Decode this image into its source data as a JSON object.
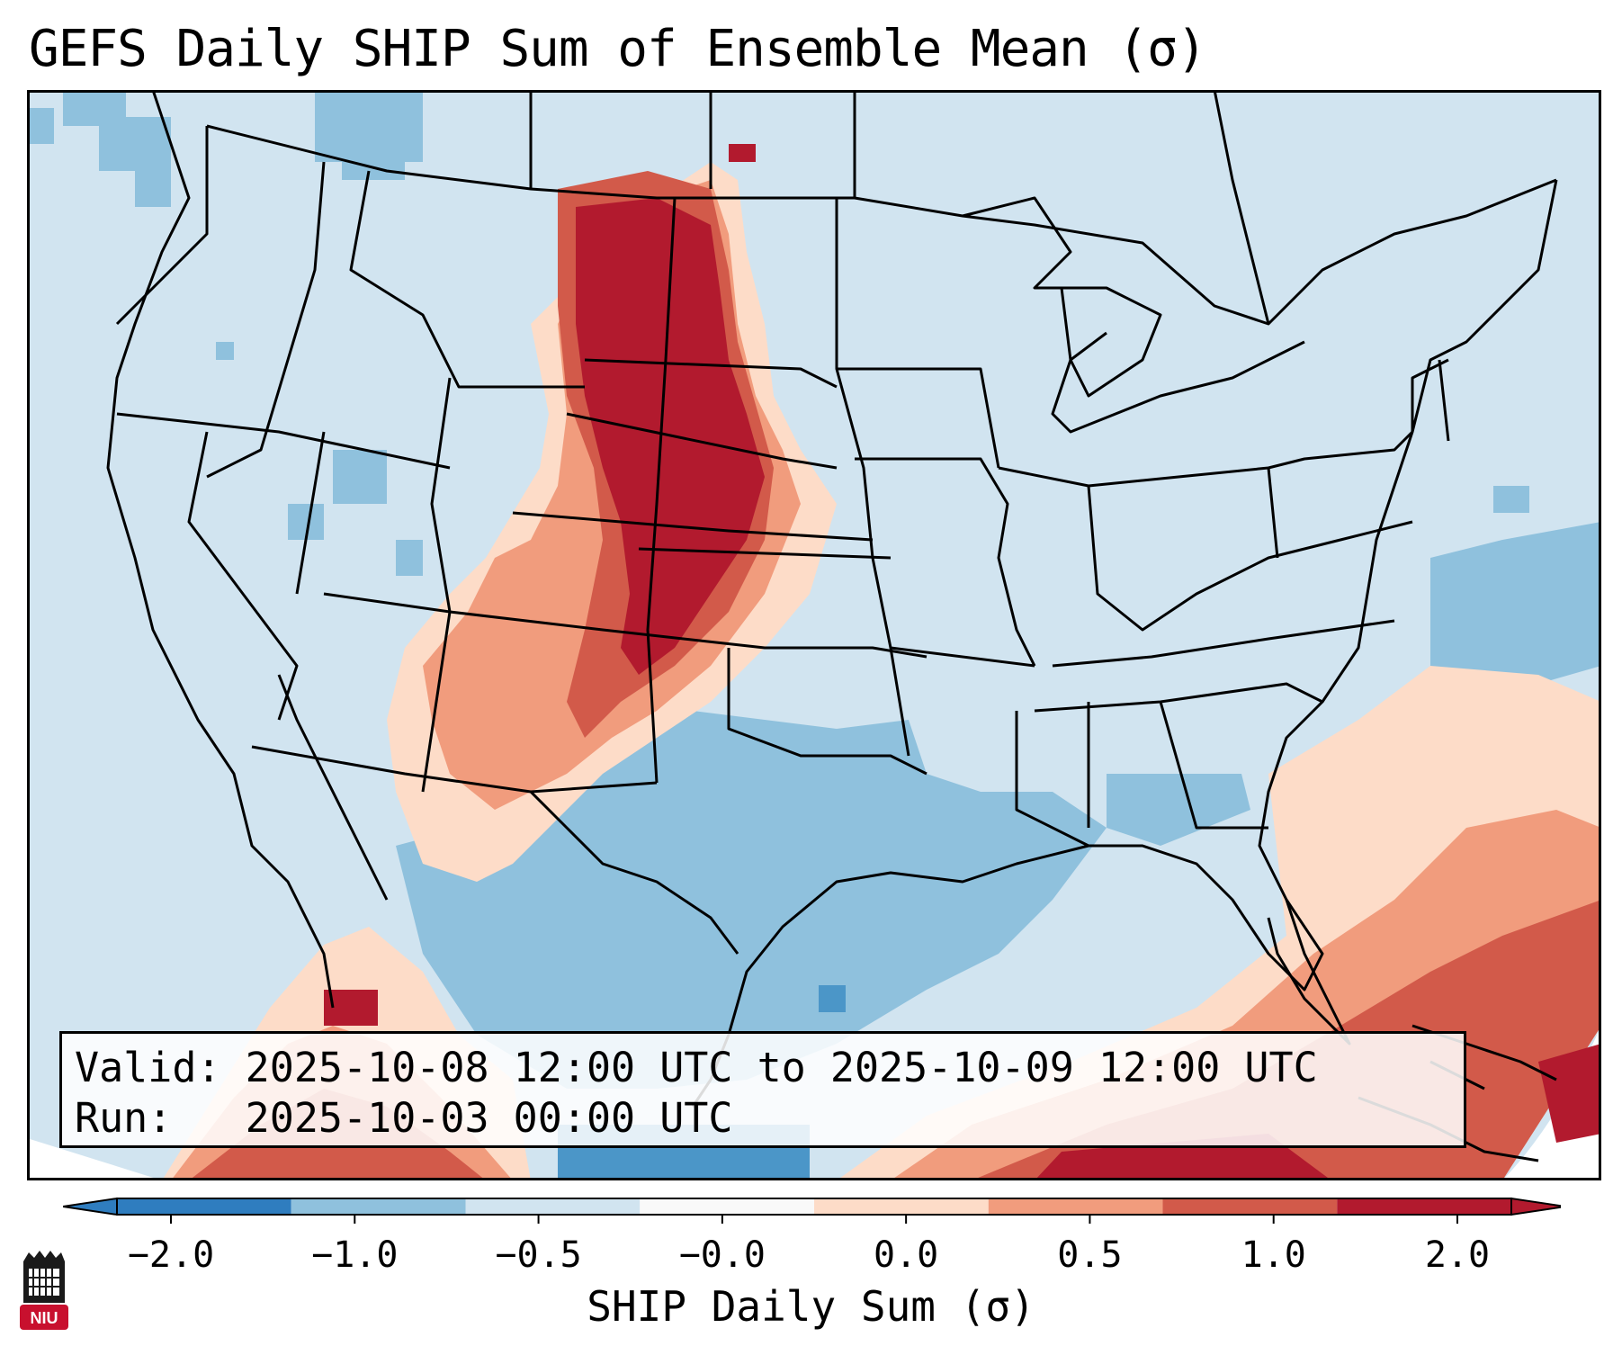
{
  "title": "GEFS Daily SHIP Sum of Ensemble Mean (σ)",
  "info": {
    "valid": "Valid: 2025-10-08 12:00 UTC to 2025-10-09 12:00 UTC",
    "run": "Run:   2025-10-03 00:00 UTC"
  },
  "colorbar": {
    "label": "SHIP Daily Sum (σ)",
    "ticks": [
      "−2.0",
      "−1.0",
      "−0.5",
      "−0.0",
      "0.0",
      "0.5",
      "1.0",
      "2.0"
    ],
    "colors": [
      "#2f7dbf",
      "#8fc1dd",
      "#d1e4f0",
      "#f9f9f9",
      "#fddcc8",
      "#f19c7d",
      "#d25a4a",
      "#b21a2e"
    ],
    "extend": "both"
  },
  "map": {
    "projection": "Lambert Conformal, CONUS",
    "background_color": "#d1e4f0",
    "features": [
      {
        "name": "northern-plains-maximum",
        "value": 2.0,
        "color": "#b21a2e"
      },
      {
        "name": "plains-gradient-band",
        "value": 1.0,
        "color": "#d25a4a"
      },
      {
        "name": "rockies-weak-positive",
        "value": 0.5,
        "color": "#f19c7d"
      },
      {
        "name": "texas-gulf-negative",
        "value": -1.0,
        "color": "#8fc1dd"
      },
      {
        "name": "atlantic-offshore-negative",
        "value": -1.0,
        "color": "#8fc1dd"
      },
      {
        "name": "caribbean-positive",
        "value": 1.0,
        "color": "#d25a4a"
      },
      {
        "name": "mexico-positive",
        "value": 1.0,
        "color": "#d25a4a"
      }
    ]
  },
  "logo": {
    "text": "NIU",
    "color": "#c8102e"
  }
}
